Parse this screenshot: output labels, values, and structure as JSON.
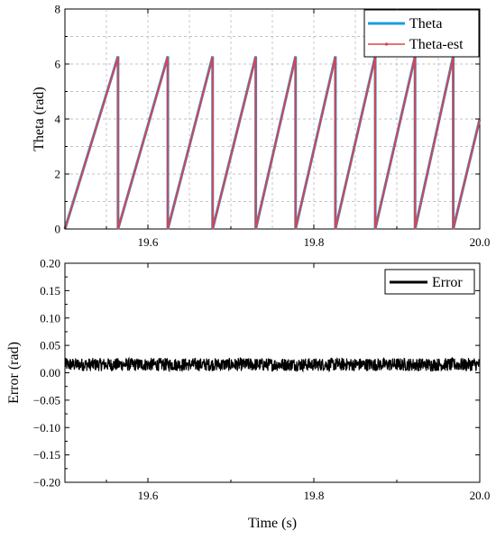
{
  "chart_data": [
    {
      "type": "line",
      "ylabel": "Theta (rad)",
      "xlim": [
        19.5,
        20.0
      ],
      "ylim": [
        0,
        8
      ],
      "xticks": [
        19.6,
        19.8,
        20.0
      ],
      "xtick_labels": [
        "19.6",
        "19.8",
        "20.0"
      ],
      "yticks": [
        0,
        2,
        4,
        6,
        8
      ],
      "ytick_labels": [
        "0",
        "2",
        "4",
        "6",
        "8"
      ],
      "grid": true,
      "legend": "top-right",
      "series": [
        {
          "name": "Theta",
          "color": "#1f9bde",
          "x": [
            19.5,
            19.564,
            19.564,
            19.624,
            19.624,
            19.678,
            19.678,
            19.73,
            19.73,
            19.778,
            19.778,
            19.826,
            19.826,
            19.874,
            19.874,
            19.922,
            19.922,
            19.968,
            19.968,
            20.0
          ],
          "y": [
            0,
            6.28,
            0,
            6.28,
            0,
            6.28,
            0,
            6.28,
            0,
            6.28,
            0,
            6.28,
            0,
            6.28,
            0,
            6.28,
            0,
            6.28,
            0,
            4.0
          ]
        },
        {
          "name": "Theta-est",
          "color": "#d9434f",
          "x": [
            19.5,
            19.564,
            19.564,
            19.624,
            19.624,
            19.678,
            19.678,
            19.73,
            19.73,
            19.778,
            19.778,
            19.826,
            19.826,
            19.874,
            19.874,
            19.922,
            19.922,
            19.968,
            19.968,
            20.0
          ],
          "y": [
            0,
            6.26,
            0,
            6.26,
            0,
            6.26,
            0,
            6.26,
            0,
            6.26,
            0,
            6.26,
            0,
            6.26,
            0,
            6.26,
            0,
            6.26,
            0,
            3.98
          ]
        }
      ]
    },
    {
      "type": "line",
      "xlabel": "Time (s)",
      "ylabel": "Error (rad)",
      "xlim": [
        19.5,
        20.0
      ],
      "ylim": [
        -0.2,
        0.2
      ],
      "xticks": [
        19.6,
        19.8,
        20.0
      ],
      "xtick_labels": [
        "19.6",
        "19.8",
        "20.0"
      ],
      "yticks": [
        -0.2,
        -0.15,
        -0.1,
        -0.05,
        0.0,
        0.05,
        0.1,
        0.15,
        0.2
      ],
      "ytick_labels": [
        "−0.20",
        "−0.15",
        "−0.10",
        "−0.05",
        "0.00",
        "0.05",
        "0.10",
        "0.15",
        "0.20"
      ],
      "grid": false,
      "legend": "top-right",
      "series": [
        {
          "name": "Error",
          "color": "#000000",
          "x_range": [
            19.5,
            20.0
          ],
          "mean": 0.015,
          "band_half_width": 0.012
        }
      ]
    }
  ]
}
